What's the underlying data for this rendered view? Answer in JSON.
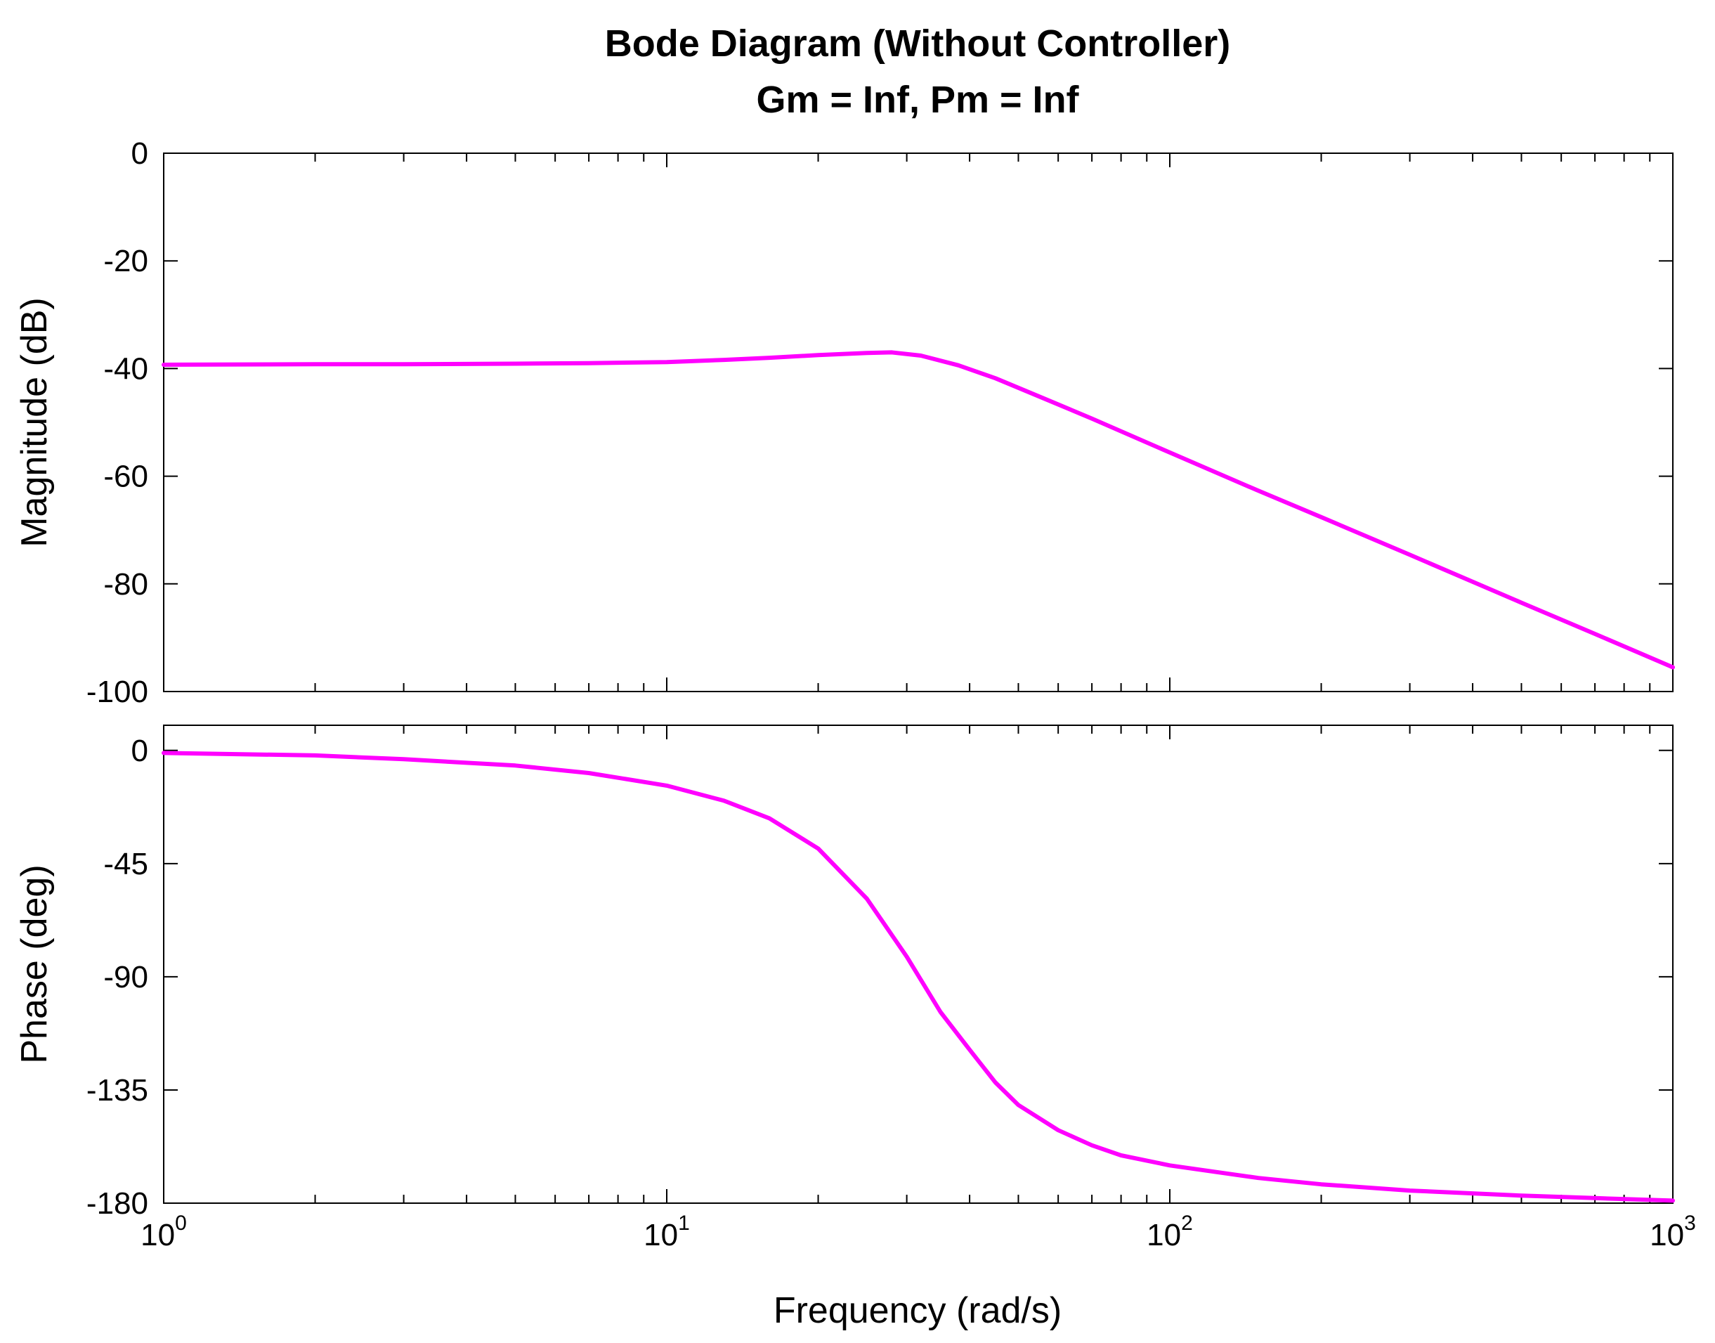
{
  "colors": {
    "background": "#ffffff",
    "axes": "#000000",
    "curve": "#ff00ff"
  },
  "chart_data": {
    "type": "line",
    "title": "Bode Diagram (Without Controller)",
    "subtitle": "Gm = Inf,  Pm = Inf",
    "xlabel": "Frequency  (rad/s)",
    "xscale": "log",
    "xlim": [
      1,
      1000
    ],
    "x_tick_labels": [
      {
        "base": "10",
        "exp": "0",
        "value": 1
      },
      {
        "base": "10",
        "exp": "1",
        "value": 10
      },
      {
        "base": "10",
        "exp": "2",
        "value": 100
      },
      {
        "base": "10",
        "exp": "3",
        "value": 1000
      }
    ],
    "grid": false,
    "panels": [
      {
        "name": "magnitude",
        "ylabel": "Magnitude (dB)",
        "ylim": [
          -100,
          0
        ],
        "y_ticks": [
          0,
          -20,
          -40,
          -60,
          -80,
          -100
        ],
        "y_tick_labels": [
          "0",
          "-20",
          "-40",
          "-60",
          "-80",
          "-100"
        ],
        "series": [
          {
            "x": [
              1,
              2,
              3,
              5,
              7,
              10,
              13,
              16,
              20,
              25,
              28,
              32,
              38,
              45,
              55,
              70,
              100,
              150,
              200,
              300,
              500,
              700,
              1000
            ],
            "y": [
              -39.3,
              -39.2,
              -39.2,
              -39.1,
              -39.0,
              -38.8,
              -38.4,
              -38.0,
              -37.5,
              -37.1,
              -37.0,
              -37.6,
              -39.4,
              -41.8,
              -45.2,
              -49.3,
              -55.6,
              -62.7,
              -67.6,
              -74.6,
              -83.5,
              -89.3,
              -95.5
            ]
          }
        ]
      },
      {
        "name": "phase",
        "ylabel": "Phase (deg)",
        "ylim": [
          -180,
          10
        ],
        "y_ticks": [
          0,
          -45,
          -90,
          -135,
          -180
        ],
        "y_tick_labels": [
          "0",
          "-45",
          "-90",
          "-135",
          "-180"
        ],
        "series": [
          {
            "x": [
              1,
              2,
              3,
              5,
              7,
              10,
              13,
              16,
              20,
              25,
              30,
              35,
              40,
              45,
              50,
              60,
              70,
              80,
              100,
              150,
              200,
              300,
              500,
              700,
              1000
            ],
            "y": [
              -1,
              -2,
              -3.5,
              -6,
              -9,
              -14,
              -20,
              -27,
              -39,
              -59,
              -82,
              -104,
              -119,
              -132,
              -141,
              -151,
              -157,
              -161,
              -165,
              -170,
              -172.5,
              -175,
              -177,
              -178,
              -179
            ]
          }
        ]
      }
    ]
  }
}
